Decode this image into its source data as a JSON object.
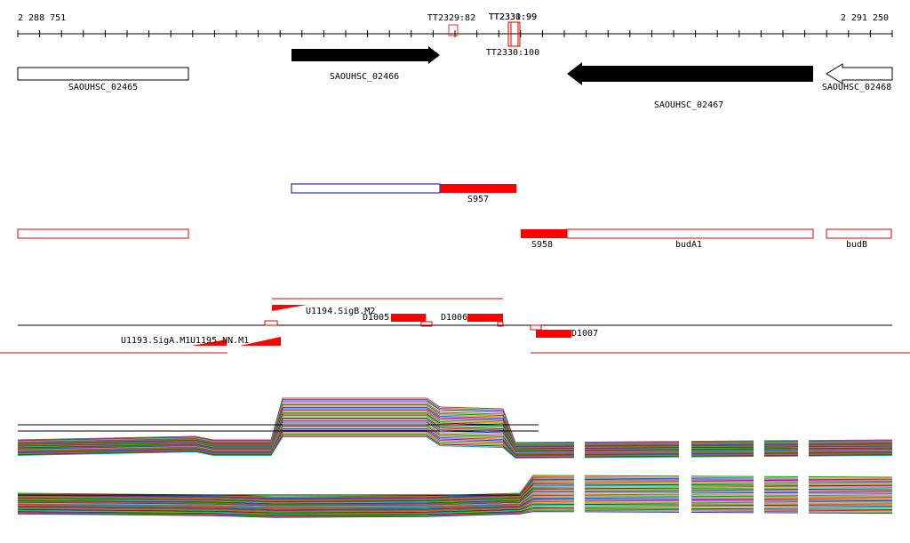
{
  "ruler": {
    "start": "2 288 751",
    "end": "2 291 250"
  },
  "terminators": [
    "TT2329:82",
    "TT2331:99",
    "TT2330:99",
    "TT2330:100"
  ],
  "genes": [
    "SAOUHSC_02465",
    "SAOUHSC_02466",
    "SAOUHSC_02467",
    "SAOUHSC_02468"
  ],
  "features": [
    "S957",
    "S958",
    "budA1",
    "budB"
  ],
  "motifs": [
    "U1194.SigB.M2",
    "U1193.SigA.M1",
    "U1195.NN.M1"
  ],
  "segments": [
    "D1005",
    "D1006",
    "D1007"
  ]
}
